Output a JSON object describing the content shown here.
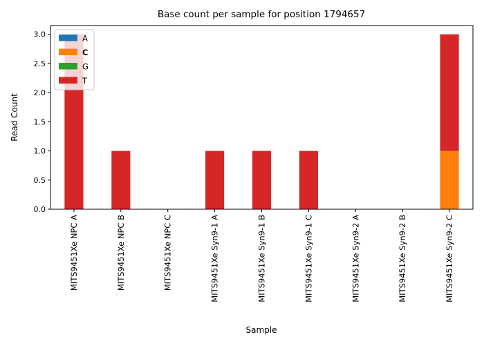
{
  "chart_data": {
    "type": "bar",
    "stacked": true,
    "title": "Base count per sample for position 1794657",
    "xlabel": "Sample",
    "ylabel": "Read Count",
    "ylim": [
      0,
      3.15
    ],
    "yticks": [
      "0.0",
      "0.5",
      "1.0",
      "1.5",
      "2.0",
      "2.5",
      "3.0"
    ],
    "grid": false,
    "legend_position": "top-left",
    "categories": [
      "MITS9451Xe NPC A",
      "MITS9451Xe NPC B",
      "MITS9451Xe NPC C",
      "MITS9451Xe Syn9-1 A",
      "MITS9451Xe Syn9-1 B",
      "MITS9451Xe Syn9-1 C",
      "MITS9451Xe Syn9-2 A",
      "MITS9451Xe Syn9-2 B",
      "MITS9451Xe Syn9-2 C"
    ],
    "series": [
      {
        "name": "A",
        "color": "#1f77b4",
        "values": [
          0,
          0,
          0,
          0,
          0,
          0,
          0,
          0,
          0
        ]
      },
      {
        "name": "C",
        "color": "#ff7f0e",
        "values": [
          0,
          0,
          0,
          0,
          0,
          0,
          0,
          0,
          1
        ],
        "legend_bold": true
      },
      {
        "name": "G",
        "color": "#2ca02c",
        "values": [
          0,
          0,
          0,
          0,
          0,
          0,
          0,
          0,
          0
        ]
      },
      {
        "name": "T",
        "color": "#d62728",
        "values": [
          3,
          1,
          0,
          1,
          1,
          1,
          0,
          0,
          2
        ]
      }
    ]
  }
}
